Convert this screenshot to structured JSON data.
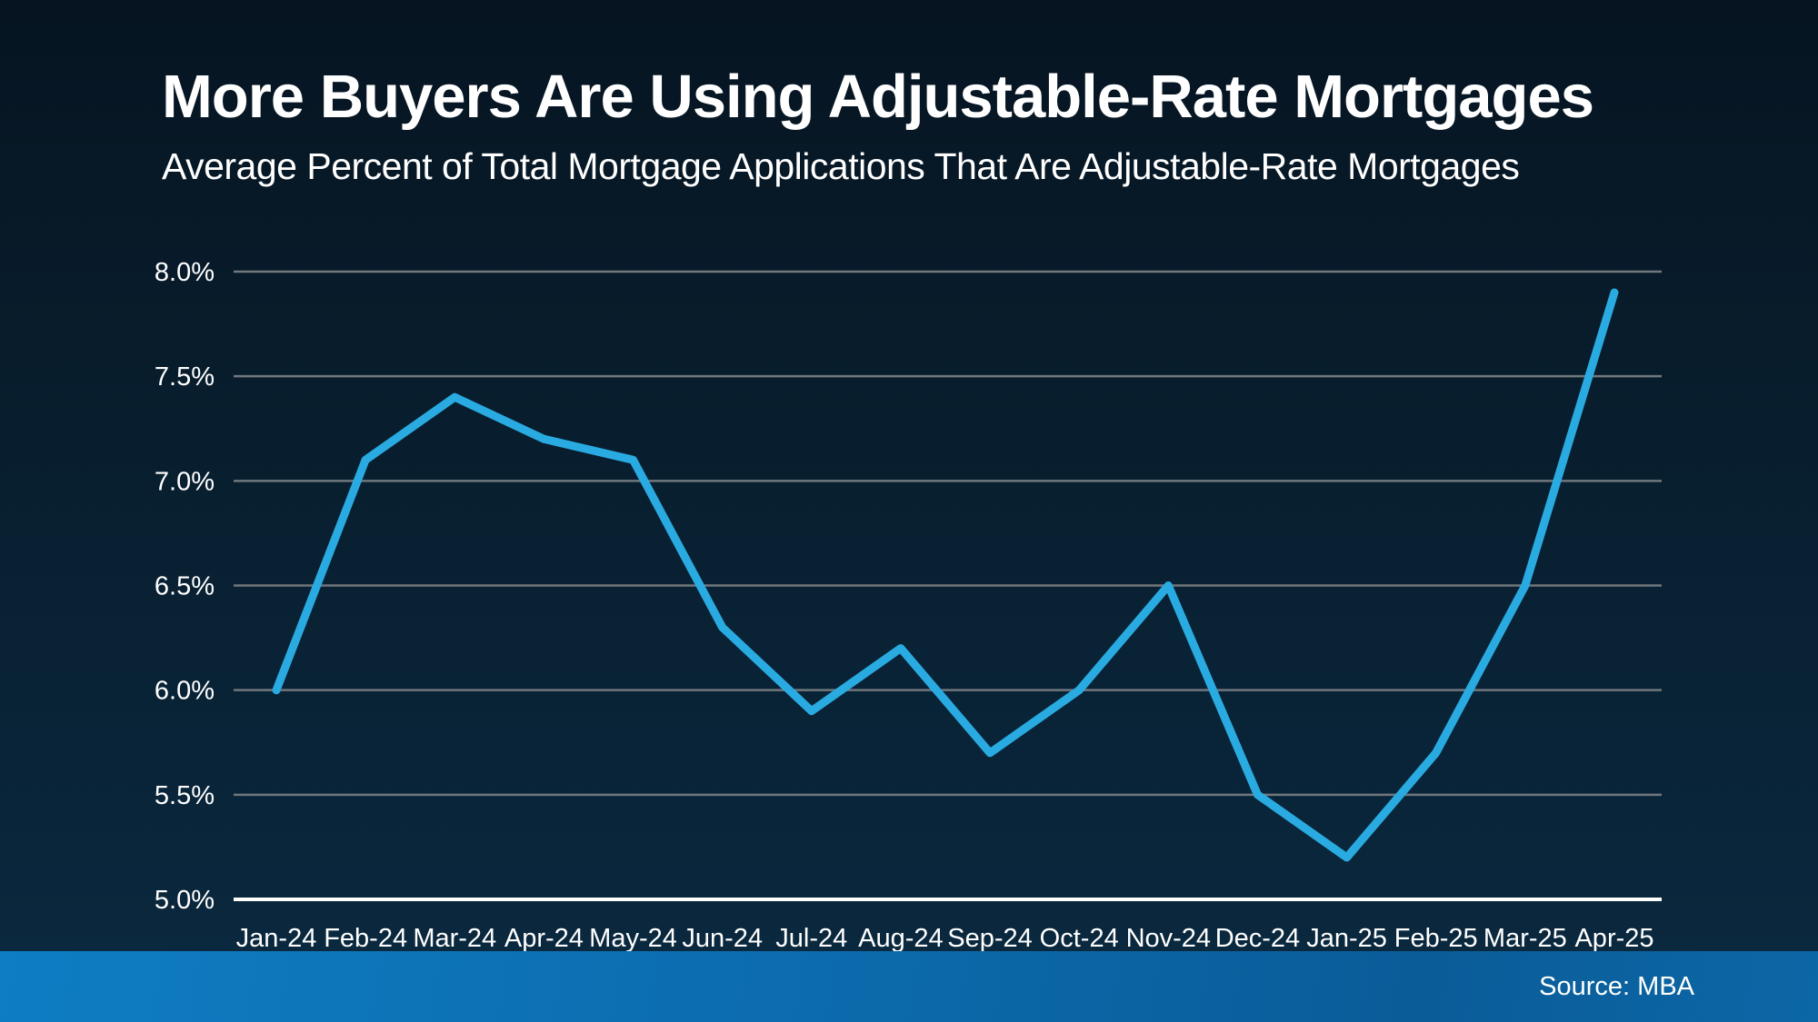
{
  "header": {
    "title": "More Buyers Are Using Adjustable-Rate Mortgages",
    "subtitle": "Average Percent of Total Mortgage Applications That Are Adjustable-Rate Mortgages"
  },
  "footer": {
    "source": "Source: MBA"
  },
  "colors": {
    "background_top": "#061421",
    "background_bottom": "#0a2940",
    "series_line": "#29abe2",
    "gridline": "#70777d",
    "axis_line": "#ffffff",
    "text": "#ffffff",
    "footer_band_left": "#0e7dc3",
    "footer_band_right": "#0a5c98"
  },
  "chart_data": {
    "type": "line",
    "title": "More Buyers Are Using Adjustable-Rate Mortgages",
    "subtitle": "Average Percent of Total Mortgage Applications That Are Adjustable-Rate Mortgages",
    "categories": [
      "Jan-24",
      "Feb-24",
      "Mar-24",
      "Apr-24",
      "May-24",
      "Jun-24",
      "Jul-24",
      "Aug-24",
      "Sep-24",
      "Oct-24",
      "Nov-24",
      "Dec-24",
      "Jan-25",
      "Feb-25",
      "Mar-25",
      "Apr-25"
    ],
    "series": [
      {
        "name": "Average Percent of Total Mortgage Applications That Are Adjustable-Rate Mortgages",
        "values": [
          6.0,
          7.1,
          7.4,
          7.2,
          7.1,
          6.3,
          5.9,
          6.2,
          5.7,
          6.0,
          6.5,
          5.5,
          5.2,
          5.7,
          6.5,
          7.9
        ]
      }
    ],
    "xlabel": "",
    "ylabel": "",
    "ylim": [
      5.0,
      8.0
    ],
    "yticks": [
      8.0,
      7.5,
      7.0,
      6.5,
      6.0,
      5.5,
      5.0
    ],
    "ytick_labels": [
      "8.0%",
      "7.5%",
      "7.0%",
      "6.5%",
      "6.0%",
      "5.5%",
      "5.0%"
    ],
    "grid": "horizontal",
    "legend": "none",
    "source": "Source: MBA"
  }
}
